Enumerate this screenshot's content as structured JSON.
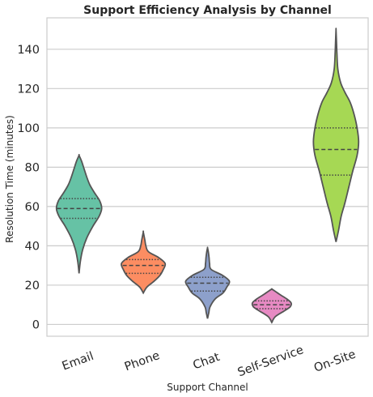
{
  "chart_data": {
    "type": "violin",
    "title": "Support Efficiency Analysis by Channel",
    "xlabel": "Support Channel",
    "ylabel": "Resolution Time (minutes)",
    "ylim": [
      -6,
      156
    ],
    "yticks": [
      0,
      20,
      40,
      60,
      80,
      100,
      120,
      140
    ],
    "grid": true,
    "categories": [
      "Email",
      "Phone",
      "Chat",
      "Self-Service",
      "On-Site"
    ],
    "colors": [
      "#66c2a5",
      "#fc8d62",
      "#8da0cb",
      "#e78ac3",
      "#a6d854"
    ],
    "series": [
      {
        "q1": 54,
        "median": 59,
        "q3": 64,
        "min": 26,
        "max": 86,
        "profile": [
          [
            26,
            0
          ],
          [
            32,
            0.05
          ],
          [
            38,
            0.14
          ],
          [
            44,
            0.3
          ],
          [
            50,
            0.54
          ],
          [
            55,
            0.78
          ],
          [
            59,
            0.88
          ],
          [
            63,
            0.8
          ],
          [
            67,
            0.6
          ],
          [
            71,
            0.42
          ],
          [
            75,
            0.3
          ],
          [
            79,
            0.2
          ],
          [
            83,
            0.1
          ],
          [
            86,
            0
          ]
        ]
      },
      {
        "q1": 26,
        "median": 30,
        "q3": 33,
        "min": 16,
        "max": 47,
        "profile": [
          [
            16,
            0
          ],
          [
            19,
            0.14
          ],
          [
            22,
            0.42
          ],
          [
            25,
            0.65
          ],
          [
            28,
            0.78
          ],
          [
            31,
            0.85
          ],
          [
            34,
            0.6
          ],
          [
            37,
            0.2
          ],
          [
            40,
            0.1
          ],
          [
            43,
            0.06
          ],
          [
            47,
            0
          ]
        ]
      },
      {
        "q1": 17,
        "median": 21,
        "q3": 24,
        "min": 3,
        "max": 39,
        "profile": [
          [
            3,
            0
          ],
          [
            6,
            0.05
          ],
          [
            9,
            0.1
          ],
          [
            13,
            0.3
          ],
          [
            16,
            0.6
          ],
          [
            19,
            0.75
          ],
          [
            22,
            0.85
          ],
          [
            25,
            0.58
          ],
          [
            28,
            0.14
          ],
          [
            31,
            0.08
          ],
          [
            34,
            0.06
          ],
          [
            37,
            0.03
          ],
          [
            39,
            0
          ]
        ]
      },
      {
        "q1": 8,
        "median": 10,
        "q3": 12,
        "min": 1,
        "max": 18,
        "profile": [
          [
            1,
            0
          ],
          [
            4,
            0.14
          ],
          [
            7,
            0.5
          ],
          [
            9,
            0.72
          ],
          [
            11,
            0.75
          ],
          [
            13,
            0.58
          ],
          [
            15,
            0.34
          ],
          [
            17,
            0.12
          ],
          [
            18,
            0
          ]
        ]
      },
      {
        "q1": 76,
        "median": 89,
        "q3": 100,
        "min": 42,
        "max": 150,
        "profile": [
          [
            42,
            0
          ],
          [
            48,
            0.1
          ],
          [
            55,
            0.2
          ],
          [
            62,
            0.35
          ],
          [
            70,
            0.5
          ],
          [
            78,
            0.65
          ],
          [
            86,
            0.82
          ],
          [
            93,
            0.88
          ],
          [
            100,
            0.82
          ],
          [
            107,
            0.7
          ],
          [
            113,
            0.55
          ],
          [
            118,
            0.35
          ],
          [
            123,
            0.18
          ],
          [
            130,
            0.07
          ],
          [
            138,
            0.035
          ],
          [
            145,
            0.015
          ],
          [
            150,
            0
          ]
        ]
      }
    ]
  }
}
